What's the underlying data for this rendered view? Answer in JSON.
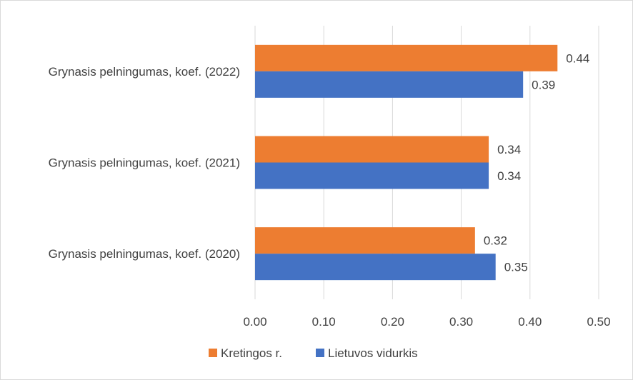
{
  "chart_data": {
    "type": "bar",
    "orientation": "horizontal",
    "categories": [
      "Grynasis pelningumas, koef. (2022)",
      "Grynasis pelningumas, koef. (2021)",
      "Grynasis pelningumas, koef. (2020)"
    ],
    "series": [
      {
        "name": "Kretingos r.",
        "color": "#ed7d31",
        "values": [
          0.44,
          0.34,
          0.32
        ],
        "labels": [
          "0.44",
          "0.34",
          "0.32"
        ]
      },
      {
        "name": "Lietuvos vidurkis",
        "color": "#4472c4",
        "values": [
          0.39,
          0.34,
          0.35
        ],
        "labels": [
          "0.39",
          "0.34",
          "0.35"
        ]
      }
    ],
    "xlim": [
      0,
      0.5
    ],
    "xticks": [
      "0.00",
      "0.10",
      "0.20",
      "0.30",
      "0.40",
      "0.50"
    ],
    "grid": true,
    "legend_position": "bottom"
  }
}
